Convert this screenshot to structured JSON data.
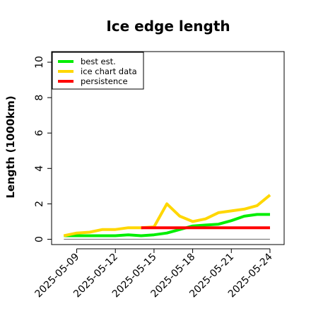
{
  "chart_data": {
    "type": "line",
    "title": "Ice edge length",
    "xlabel": "",
    "ylabel": "Length (1000km)",
    "ylim": [
      -0.3,
      10.6
    ],
    "yticks": [
      0,
      2,
      4,
      6,
      8,
      10
    ],
    "x": [
      "2025-05-08",
      "2025-05-09",
      "2025-05-10",
      "2025-05-11",
      "2025-05-12",
      "2025-05-13",
      "2025-05-14",
      "2025-05-15",
      "2025-05-16",
      "2025-05-17",
      "2025-05-18",
      "2025-05-19",
      "2025-05-20",
      "2025-05-21",
      "2025-05-22",
      "2025-05-23",
      "2025-05-24"
    ],
    "xtick_labels": [
      "2025-05-09",
      "2025-05-12",
      "2025-05-15",
      "2025-05-18",
      "2025-05-21",
      "2025-05-24"
    ],
    "series": [
      {
        "name": "best est.",
        "color": "#00ee00",
        "values": [
          0.2,
          0.2,
          0.2,
          0.2,
          0.2,
          0.25,
          0.2,
          0.25,
          0.35,
          0.55,
          0.75,
          0.8,
          0.85,
          1.05,
          1.3,
          1.4,
          1.4
        ]
      },
      {
        "name": "ice chart data",
        "color": "#ffd700",
        "values": [
          0.2,
          0.35,
          0.4,
          0.55,
          0.55,
          0.65,
          0.65,
          0.7,
          2.0,
          1.3,
          1.0,
          1.15,
          1.5,
          1.6,
          1.7,
          1.9,
          2.5
        ]
      },
      {
        "name": "persistence",
        "color": "#ff0000",
        "values": [
          null,
          null,
          null,
          null,
          null,
          null,
          0.65,
          0.65,
          0.65,
          0.65,
          0.65,
          0.65,
          0.65,
          0.65,
          0.65,
          0.65,
          0.65
        ]
      }
    ],
    "reference_line": {
      "value": 0,
      "color": "#808080"
    },
    "legend_position": "top-left",
    "grid": false
  }
}
